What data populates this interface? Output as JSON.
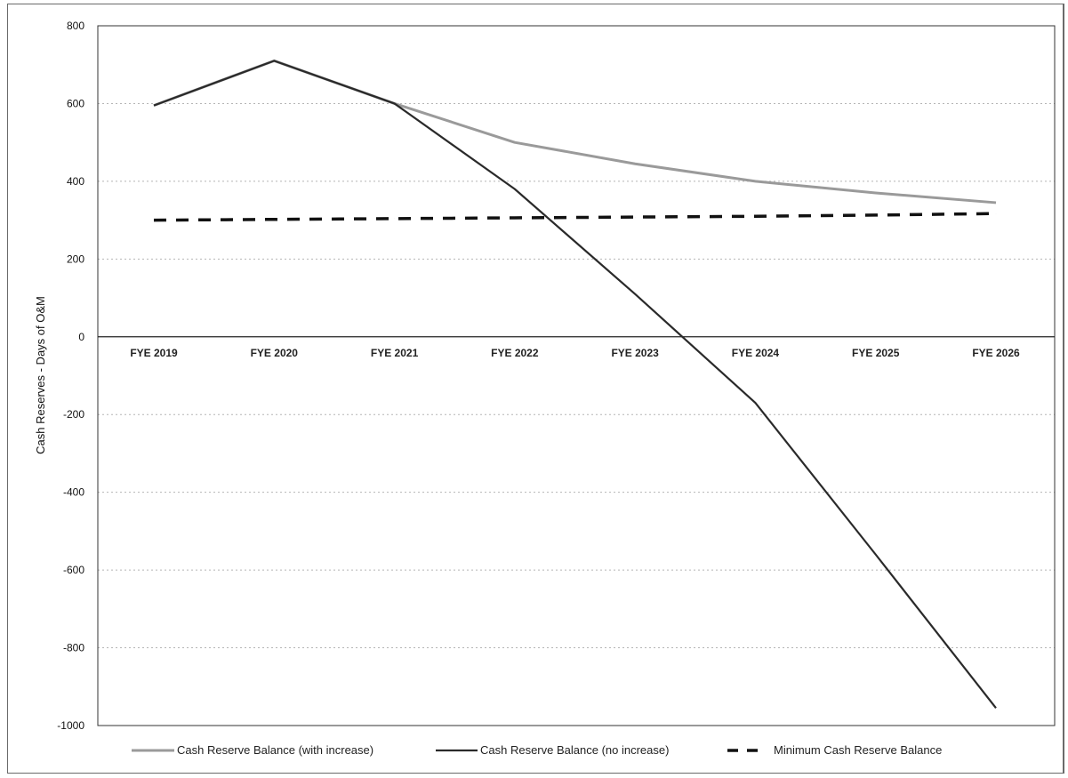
{
  "chart_data": {
    "type": "line",
    "categories": [
      "FYE 2019",
      "FYE 2020",
      "FYE 2021",
      "FYE 2022",
      "FYE 2023",
      "FYE 2024",
      "FYE 2025",
      "FYE 2026"
    ],
    "series": [
      {
        "name": "Cash Reserve Balance (with increase)",
        "values": [
          595,
          710,
          600,
          500,
          445,
          400,
          370,
          345
        ],
        "color": "#9a9a9a",
        "dash": "solid"
      },
      {
        "name": "Cash Reserve Balance (no increase)",
        "values": [
          595,
          710,
          600,
          380,
          110,
          -170,
          -560,
          -955
        ],
        "color": "#2a2a2a",
        "dash": "solid"
      },
      {
        "name": "Minimum Cash Reserve Balance",
        "values": [
          300,
          302,
          304,
          306,
          308,
          310,
          313,
          317
        ],
        "color": "#111111",
        "dash": "dashed"
      }
    ],
    "title": "",
    "xlabel": "",
    "ylabel": "Cash Reserves - Days of O&M",
    "ylim": [
      -1000,
      800
    ],
    "yticks": [
      800,
      600,
      400,
      200,
      0,
      -200,
      -400,
      -600,
      -800,
      -1000
    ],
    "grid": true,
    "legend": "bottom"
  }
}
